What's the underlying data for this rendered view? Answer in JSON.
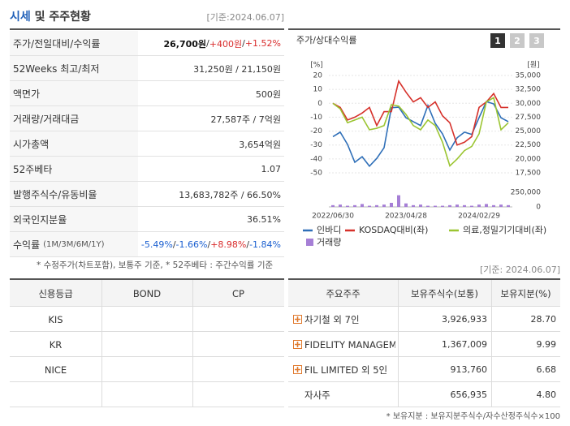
{
  "header": {
    "title_highlight": "시세",
    "title_rest": "및 주주현황",
    "date": "[기준:2024.06.07]"
  },
  "price_table": {
    "rows": [
      {
        "label": "주가/전일대비/수익률",
        "parts": [
          {
            "text": "26,700원",
            "tone": "strong"
          },
          {
            "text": " / ",
            "tone": "plain"
          },
          {
            "text": "+400원",
            "tone": "up"
          },
          {
            "text": " / ",
            "tone": "plain"
          },
          {
            "text": "+1.52%",
            "tone": "up"
          }
        ]
      },
      {
        "label": "52Weeks 최고/최저",
        "parts": [
          {
            "text": "31,250원 / 21,150원",
            "tone": "plain"
          }
        ]
      },
      {
        "label": "액면가",
        "parts": [
          {
            "text": "500원",
            "tone": "plain"
          }
        ]
      },
      {
        "label": "거래량/거래대금",
        "parts": [
          {
            "text": "27,587주 / 7억원",
            "tone": "plain"
          }
        ]
      },
      {
        "label": "시가총액",
        "parts": [
          {
            "text": "3,654억원",
            "tone": "plain"
          }
        ]
      },
      {
        "label": "52주베타",
        "parts": [
          {
            "text": "1.07",
            "tone": "plain"
          }
        ]
      },
      {
        "label": "발행주식수/유동비율",
        "parts": [
          {
            "text": "13,683,782주 / 66.50%",
            "tone": "plain"
          }
        ]
      },
      {
        "label": "외국인지분율",
        "parts": [
          {
            "text": "36.51%",
            "tone": "plain"
          }
        ]
      },
      {
        "label": "수익률",
        "label_note": "(1M/3M/6M/1Y)",
        "parts": [
          {
            "text": "-5.49%",
            "tone": "down"
          },
          {
            "text": " / ",
            "tone": "plain"
          },
          {
            "text": "-1.66%",
            "tone": "down"
          },
          {
            "text": " / ",
            "tone": "plain"
          },
          {
            "text": "+8.98%",
            "tone": "up"
          },
          {
            "text": " / ",
            "tone": "plain"
          },
          {
            "text": "-1.84%",
            "tone": "down"
          }
        ]
      }
    ],
    "footnote": "* 수정주가(차트포함), 보통주 기준, * 52주베타 : 주간수익률 기준"
  },
  "chart_data": {
    "type": "line",
    "title": "주가/상대수익률",
    "tabs": [
      "1",
      "2",
      "3"
    ],
    "y_unit": "[%]",
    "y2_unit": "[원]",
    "categories": [
      "2022/06/30",
      null,
      null,
      null,
      null,
      null,
      null,
      null,
      null,
      null,
      "2023/04/28",
      null,
      null,
      null,
      null,
      null,
      null,
      null,
      null,
      null,
      "2024/02/29",
      null,
      null,
      null,
      null
    ],
    "ylim": [
      -50,
      20
    ],
    "yticks": [
      -50,
      -40,
      -30,
      -20,
      -10,
      0,
      10,
      20
    ],
    "y2lim": [
      17500,
      35000
    ],
    "y2ticks": [
      {
        "value": 17500,
        "label": "17,500"
      },
      {
        "value": 20000,
        "label": "20,000"
      },
      {
        "value": 22500,
        "label": "22,500"
      },
      {
        "value": 25000,
        "label": "25,000"
      },
      {
        "value": 27500,
        "label": "27,500"
      },
      {
        "value": 30000,
        "label": "30,000"
      },
      {
        "value": 32500,
        "label": "32,500"
      },
      {
        "value": 35000,
        "label": "35,000"
      }
    ],
    "volume_lim": [
      0,
      250000
    ],
    "volume_ticks": [
      0,
      {
        "value": 250000,
        "label": "250,000"
      }
    ],
    "grid": true,
    "series": [
      {
        "name": "인바디",
        "color": "#2f6fb8",
        "axis": "y2",
        "values": [
          24000,
          24800,
          22600,
          19400,
          20400,
          18700,
          20100,
          22000,
          29200,
          29300,
          27400,
          26700,
          26000,
          29600,
          26400,
          24500,
          21600,
          23800,
          24800,
          24400,
          27400,
          30300,
          29900,
          27400,
          26700
        ]
      },
      {
        "name": "KOSDAQ대비(좌)",
        "color": "#d6312b",
        "axis": "y",
        "values": [
          0,
          -3,
          -12,
          -10,
          -7,
          -3,
          -16,
          -6,
          -6,
          16,
          8,
          1,
          4,
          -3,
          1,
          -9,
          -14,
          -30,
          -28,
          -24,
          -3,
          1,
          7,
          -3,
          -3
        ]
      },
      {
        "name": "의료,정밀기기대비(좌)",
        "color": "#9bc531",
        "axis": "y",
        "values": [
          0,
          -4,
          -14,
          -12,
          -10,
          -19,
          -18,
          -16,
          -1,
          -2,
          -8,
          -16,
          -19,
          -12,
          -16,
          -28,
          -45,
          -40,
          -34,
          -31,
          -22,
          1,
          4,
          -19,
          -14
        ]
      },
      {
        "name": "거래량",
        "color": "#a67fd6",
        "type": "bar",
        "axis": "volume",
        "values": [
          30000,
          40000,
          20000,
          30000,
          50000,
          20000,
          30000,
          40000,
          70000,
          200000,
          60000,
          30000,
          40000,
          20000,
          20000,
          20000,
          30000,
          40000,
          30000,
          20000,
          40000,
          50000,
          30000,
          40000,
          30000
        ]
      }
    ]
  },
  "holder_date": "[기준: 2024.06.07]",
  "credit_table": {
    "headers": [
      "신용등급",
      "BOND",
      "CP"
    ],
    "rows": [
      [
        "KIS"
      ],
      [
        "KR"
      ],
      [
        "NICE"
      ]
    ]
  },
  "holder_table": {
    "headers": [
      "주요주주",
      "보유주식수(보통)",
      "보유지분(%)"
    ],
    "rows": [
      {
        "name": "차기철 외 7인",
        "shares": "3,926,933",
        "pct": "28.70",
        "expand": true
      },
      {
        "name": "FIDELITY MANAGEM…",
        "shares": "1,367,009",
        "pct": "9.99",
        "expand": true
      },
      {
        "name": "FIL LIMITED 외 5인",
        "shares": "913,760",
        "pct": "6.68",
        "expand": true
      },
      {
        "name": "자사주",
        "shares": "656,935",
        "pct": "4.80",
        "expand": false
      }
    ],
    "footnote": "* 보유지분 : 보유지분주식수/자수산정주식수×100"
  }
}
